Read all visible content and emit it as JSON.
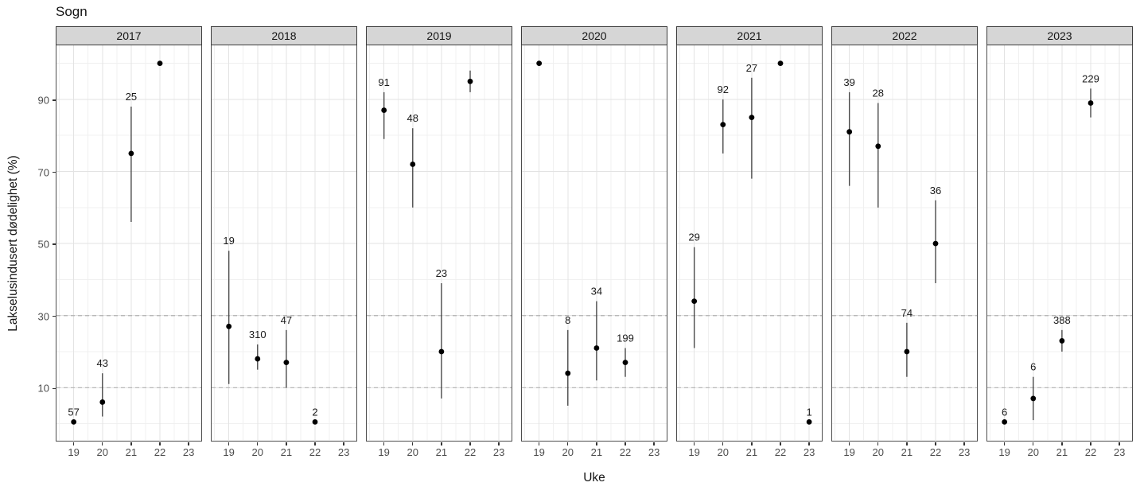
{
  "title": "Sogn",
  "axes": {
    "x_label": "Uke",
    "y_label": "Lakselusindusert dødelighet (%)",
    "x_tick_labels": [
      "19",
      "20",
      "21",
      "22",
      "23"
    ],
    "y_tick_labels": [
      "10",
      "30",
      "50",
      "70",
      "90"
    ]
  },
  "colors": {
    "strip_background": "#d6d6d6",
    "strip_border": "#3c3c3c",
    "panel_border": "#4d4d4d",
    "grid_major": "#e3e3e3",
    "grid_minor": "#f0f0f0",
    "dashed_reference": "#b3b3b3",
    "errorbar": "#4a4a4a",
    "point": "#000000",
    "label_text": "#1a1a1a",
    "axis_text": "#4d4d4d"
  },
  "chart_data": {
    "type": "scatter",
    "title": "Sogn",
    "xlabel": "Uke",
    "ylabel": "Lakselusindusert dødelighet (%)",
    "grid": true,
    "x_ticks": [
      19,
      20,
      21,
      22,
      23
    ],
    "y_ticks": [
      10,
      30,
      50,
      70,
      90
    ],
    "x_minor_gridlines": [
      18.5,
      19.5,
      20.5,
      21.5,
      22.5
    ],
    "y_minor_gridlines": [
      0,
      20,
      40,
      60,
      80,
      100
    ],
    "dashed_reference_lines": [
      10,
      30
    ],
    "x_range": [
      18.4,
      23.44
    ],
    "y_range": [
      -4.5,
      105
    ],
    "point_shape": "filled-circle-with-vertical-error-bar",
    "facets": [
      {
        "year": "2017",
        "points": [
          {
            "week": 19,
            "value": 0.5,
            "low": null,
            "high": null,
            "label": "57"
          },
          {
            "week": 20,
            "value": 6,
            "low": 2,
            "high": 14,
            "label": "43"
          },
          {
            "week": 21,
            "value": 75,
            "low": 56,
            "high": 88,
            "label": "25"
          },
          {
            "week": 22,
            "value": 100,
            "low": null,
            "high": null,
            "label": null
          }
        ]
      },
      {
        "year": "2018",
        "points": [
          {
            "week": 19,
            "value": 27,
            "low": 11,
            "high": 48,
            "label": "19"
          },
          {
            "week": 20,
            "value": 18,
            "low": 15,
            "high": 22,
            "label": "310"
          },
          {
            "week": 21,
            "value": 17,
            "low": 10,
            "high": 26,
            "label": "47"
          },
          {
            "week": 22,
            "value": 0.5,
            "low": null,
            "high": null,
            "label": "2"
          }
        ]
      },
      {
        "year": "2019",
        "points": [
          {
            "week": 19,
            "value": 87,
            "low": 79,
            "high": 92,
            "label": "91"
          },
          {
            "week": 20,
            "value": 72,
            "low": 60,
            "high": 82,
            "label": "48"
          },
          {
            "week": 21,
            "value": 20,
            "low": 7,
            "high": 39,
            "label": "23"
          },
          {
            "week": 22,
            "value": 95,
            "low": 92,
            "high": 98,
            "label": null
          }
        ]
      },
      {
        "year": "2020",
        "points": [
          {
            "week": 19,
            "value": 100,
            "low": null,
            "high": null,
            "label": null
          },
          {
            "week": 20,
            "value": 14,
            "low": 5,
            "high": 26,
            "label": "8"
          },
          {
            "week": 21,
            "value": 21,
            "low": 12,
            "high": 34,
            "label": "34"
          },
          {
            "week": 22,
            "value": 17,
            "low": 13,
            "high": 21,
            "label": "199"
          }
        ]
      },
      {
        "year": "2021",
        "points": [
          {
            "week": 19,
            "value": 34,
            "low": 21,
            "high": 49,
            "label": "29"
          },
          {
            "week": 20,
            "value": 83,
            "low": 75,
            "high": 90,
            "label": "92"
          },
          {
            "week": 21,
            "value": 85,
            "low": 68,
            "high": 96,
            "label": "27"
          },
          {
            "week": 22,
            "value": 100,
            "low": null,
            "high": null,
            "label": null
          },
          {
            "week": 23,
            "value": 0.5,
            "low": null,
            "high": null,
            "label": "1"
          }
        ]
      },
      {
        "year": "2022",
        "points": [
          {
            "week": 19,
            "value": 81,
            "low": 66,
            "high": 92,
            "label": "39"
          },
          {
            "week": 20,
            "value": 77,
            "low": 60,
            "high": 89,
            "label": "28"
          },
          {
            "week": 21,
            "value": 20,
            "low": 13,
            "high": 28,
            "label": "74"
          },
          {
            "week": 22,
            "value": 50,
            "low": 39,
            "high": 62,
            "label": "36"
          }
        ]
      },
      {
        "year": "2023",
        "points": [
          {
            "week": 19,
            "value": 0.5,
            "low": null,
            "high": null,
            "label": "6"
          },
          {
            "week": 20,
            "value": 7,
            "low": 1,
            "high": 13,
            "label": "6"
          },
          {
            "week": 21,
            "value": 23,
            "low": 20,
            "high": 26,
            "label": "388"
          },
          {
            "week": 22,
            "value": 89,
            "low": 85,
            "high": 93,
            "label": "229"
          }
        ]
      }
    ]
  }
}
